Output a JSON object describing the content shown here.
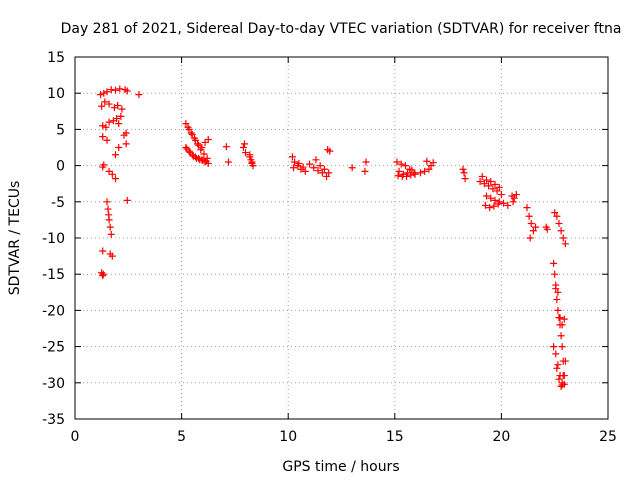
{
  "chart_data": {
    "type": "scatter",
    "title": "Day 281 of 2021, Sidereal Day-to-day VTEC variation (SDTVAR) for receiver ftna",
    "xlabel": "GPS time / hours",
    "ylabel": "SDTVAR / TECUs",
    "xlim": [
      0,
      25
    ],
    "ylim": [
      -35,
      15
    ],
    "xticks": [
      0,
      5,
      10,
      15,
      20,
      25
    ],
    "yticks": [
      15,
      10,
      5,
      0,
      -5,
      -10,
      -15,
      -20,
      -25,
      -30,
      -35
    ],
    "grid": true,
    "marker": "+",
    "color": "#ff0000",
    "series": [
      {
        "name": "SDTVAR",
        "x": [
          1.2,
          1.35,
          1.5,
          1.7,
          1.9,
          2.1,
          2.35,
          2.45,
          3.0,
          1.25,
          1.4,
          1.6,
          1.85,
          2.0,
          2.2,
          1.3,
          1.45,
          1.6,
          1.8,
          1.95,
          2.05,
          2.15,
          2.3,
          2.4,
          1.3,
          1.5,
          1.9,
          2.05,
          2.4,
          1.3,
          1.35,
          1.6,
          1.75,
          1.9,
          1.5,
          1.55,
          1.58,
          1.6,
          1.65,
          1.7,
          1.75,
          2.45,
          1.3,
          1.65,
          1.25,
          1.3,
          1.33,
          5.2,
          5.35,
          5.5,
          5.65,
          5.8,
          5.95,
          6.1,
          6.25,
          5.25,
          5.4,
          5.55,
          5.7,
          5.85,
          6.0,
          6.15,
          5.3,
          5.45,
          5.6,
          5.75,
          5.9,
          6.05,
          6.2,
          5.2,
          5.35,
          5.5,
          5.65,
          5.8,
          5.95,
          6.1,
          6.25,
          7.1,
          7.2,
          7.9,
          7.95,
          8.0,
          8.2,
          8.25,
          8.3,
          8.35,
          8.2,
          8.3,
          10.2,
          10.3,
          10.45,
          10.6,
          10.8,
          10.25,
          10.5,
          10.7,
          11.0,
          11.2,
          11.4,
          11.6,
          11.8,
          11.3,
          11.5,
          11.7,
          11.9,
          11.85,
          11.95,
          13.0,
          13.6,
          13.65,
          15.1,
          15.3,
          15.5,
          15.7,
          15.9,
          15.2,
          15.4,
          15.6,
          15.8,
          15.15,
          15.35,
          15.55,
          15.75,
          15.95,
          16.2,
          16.4,
          16.6,
          16.8,
          16.5,
          16.7,
          18.2,
          18.3,
          18.25,
          19.0,
          19.2,
          19.4,
          19.6,
          19.8,
          20.0,
          19.1,
          19.3,
          19.5,
          19.7,
          19.9,
          19.3,
          19.5,
          19.7,
          19.9,
          20.1,
          20.3,
          20.5,
          20.7,
          19.25,
          19.45,
          19.65,
          19.85,
          20.6,
          20.55,
          21.2,
          21.3,
          21.4,
          21.5,
          21.35,
          21.6,
          22.1,
          22.15,
          22.5,
          22.6,
          22.7,
          22.8,
          22.9,
          23.0,
          22.45,
          22.5,
          22.55,
          22.6,
          22.65,
          22.7,
          22.75,
          22.8,
          22.85,
          22.9,
          22.95,
          22.45,
          22.55,
          22.65,
          22.75,
          22.85,
          22.95,
          22.6,
          22.7,
          22.8,
          22.85,
          22.9,
          23.0,
          22.75,
          22.85,
          22.95,
          22.55,
          22.65
        ],
        "y": [
          9.8,
          10.0,
          10.2,
          10.5,
          10.4,
          10.6,
          10.5,
          10.3,
          9.8,
          8.2,
          8.8,
          8.5,
          8.0,
          8.3,
          7.8,
          5.5,
          5.3,
          6.0,
          6.2,
          6.5,
          5.8,
          6.8,
          4.2,
          4.5,
          4.0,
          3.5,
          1.5,
          2.5,
          3.0,
          -0.2,
          0.1,
          -0.8,
          -1.2,
          -1.8,
          -5.0,
          -6.0,
          -6.8,
          -7.5,
          -8.5,
          -9.5,
          -12.5,
          -4.8,
          -11.8,
          -12.2,
          -14.8,
          -15.2,
          -15.0,
          5.8,
          5.0,
          4.3,
          3.5,
          2.8,
          2.5,
          3.2,
          3.6,
          2.3,
          1.8,
          1.3,
          1.0,
          0.8,
          0.7,
          0.6,
          5.3,
          4.5,
          3.8,
          3.0,
          2.2,
          1.6,
          1.0,
          2.5,
          2.0,
          1.5,
          1.2,
          1.0,
          0.8,
          0.5,
          0.3,
          2.6,
          0.5,
          2.5,
          3.0,
          1.8,
          1.5,
          0.8,
          0.3,
          0.0,
          1.2,
          0.5,
          1.2,
          0.5,
          0.0,
          -0.5,
          -0.8,
          -0.3,
          0.3,
          -0.2,
          0.2,
          -0.3,
          -0.7,
          -1.0,
          -1.5,
          0.8,
          0.0,
          -0.5,
          -1.0,
          2.2,
          2.0,
          -0.3,
          -0.8,
          0.5,
          0.5,
          0.2,
          0.0,
          -0.5,
          -1.0,
          -0.8,
          -1.2,
          -1.0,
          -0.6,
          -1.4,
          -1.5,
          -1.5,
          -1.3,
          -1.2,
          -1.0,
          -0.8,
          -0.5,
          0.4,
          0.6,
          0.0,
          -0.5,
          -1.8,
          -1.0,
          -2.2,
          -2.5,
          -2.8,
          -3.2,
          -3.5,
          -4.0,
          -1.5,
          -2.0,
          -2.2,
          -2.6,
          -3.0,
          -4.2,
          -4.5,
          -4.8,
          -5.0,
          -5.2,
          -5.5,
          -4.2,
          -4.0,
          -5.5,
          -5.8,
          -5.6,
          -5.3,
          -4.5,
          -5.0,
          -5.8,
          -7.0,
          -8.0,
          -9.0,
          -10.0,
          -8.5,
          -8.5,
          -8.8,
          -6.5,
          -7.0,
          -8.0,
          -9.0,
          -10.0,
          -10.8,
          -13.5,
          -15.0,
          -17.0,
          -18.5,
          -20.0,
          -21.0,
          -22.0,
          -23.5,
          -25.0,
          -27.0,
          -29.0,
          -25.0,
          -26.0,
          -27.5,
          -29.0,
          -30.0,
          -30.2,
          -28.0,
          -29.5,
          -30.5,
          -30.3,
          -29.0,
          -27.0,
          -21.0,
          -22.0,
          -21.2,
          -16.5,
          -17.5
        ]
      }
    ]
  }
}
